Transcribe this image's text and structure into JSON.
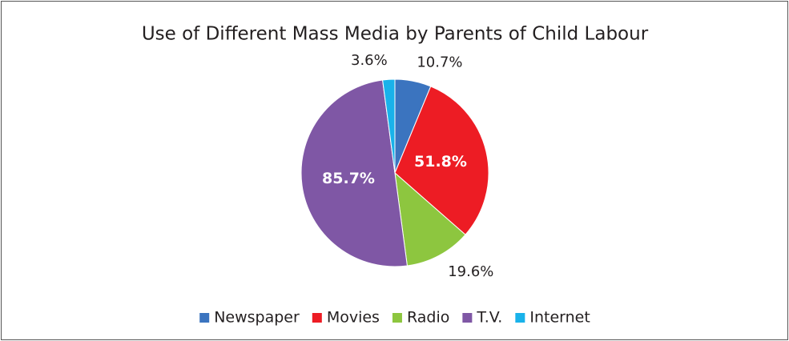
{
  "chart_data": {
    "type": "pie",
    "title": "Use of Different Mass Media by Parents of Child Labour",
    "categories": [
      "Newspaper",
      "Movies",
      "Radio",
      "T.V.",
      "Internet"
    ],
    "values": [
      10.7,
      51.8,
      19.6,
      85.7,
      3.6
    ],
    "value_labels": [
      "10.7%",
      "51.8%",
      "19.6%",
      "85.7%",
      "3.6%"
    ],
    "colors": [
      "#3b74bf",
      "#ed1c24",
      "#8dc63f",
      "#7f57a5",
      "#19b2ea"
    ],
    "legend": "bottom"
  }
}
